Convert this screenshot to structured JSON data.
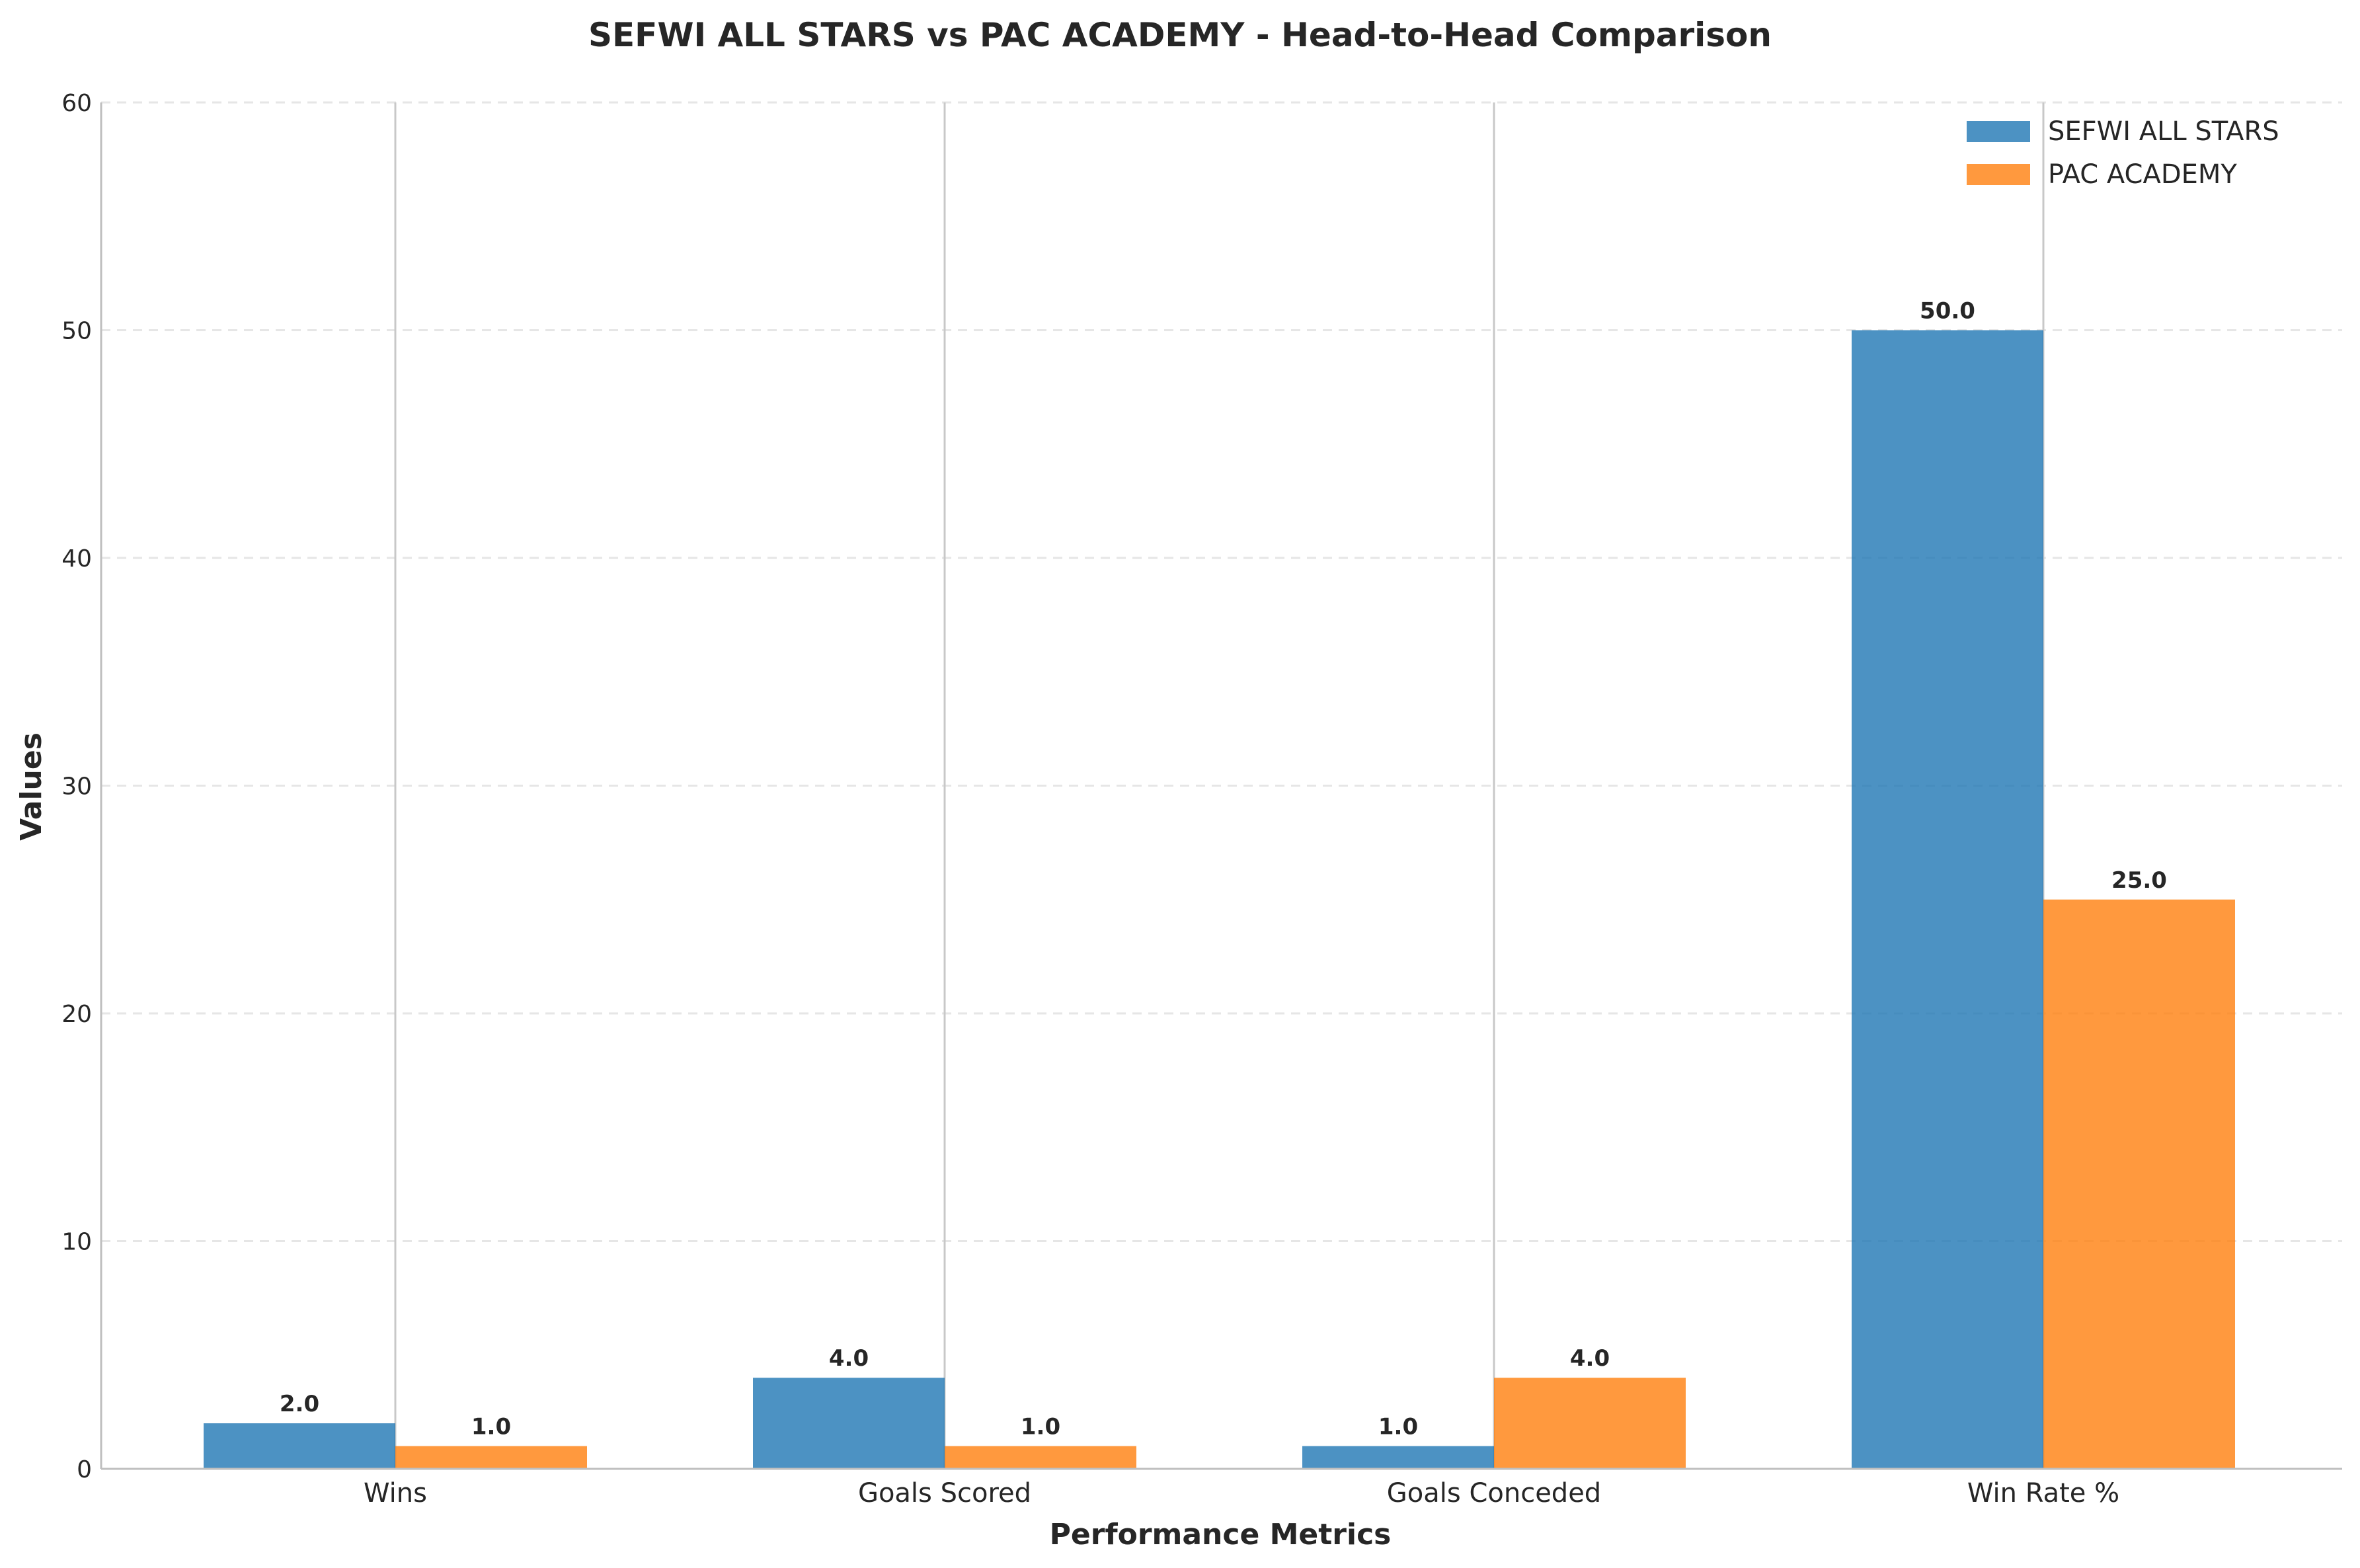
{
  "chart_data": {
    "type": "bar",
    "title": "SEFWI ALL STARS vs PAC ACADEMY - Head-to-Head Comparison",
    "xlabel": "Performance Metrics",
    "ylabel": "Values",
    "categories": [
      "Wins",
      "Goals Scored",
      "Goals Conceded",
      "Win Rate %"
    ],
    "series": [
      {
        "name": "SEFWI ALL STARS",
        "values": [
          2.0,
          4.0,
          1.0,
          50.0
        ],
        "color": "#1f77b4",
        "labels": [
          "2.0",
          "4.0",
          "1.0",
          "50.0"
        ]
      },
      {
        "name": "PAC ACADEMY",
        "values": [
          1.0,
          1.0,
          4.0,
          25.0
        ],
        "color": "#ff7f0e",
        "labels": [
          "1.0",
          "1.0",
          "4.0",
          "25.0"
        ]
      }
    ],
    "ylim": [
      0,
      60
    ],
    "yticks": [
      0,
      10,
      20,
      30,
      40,
      50,
      60
    ],
    "ytick_labels": [
      "0",
      "10",
      "20",
      "30",
      "40",
      "50",
      "60"
    ],
    "grid": "y-dashed",
    "legend_position": "top-right"
  }
}
